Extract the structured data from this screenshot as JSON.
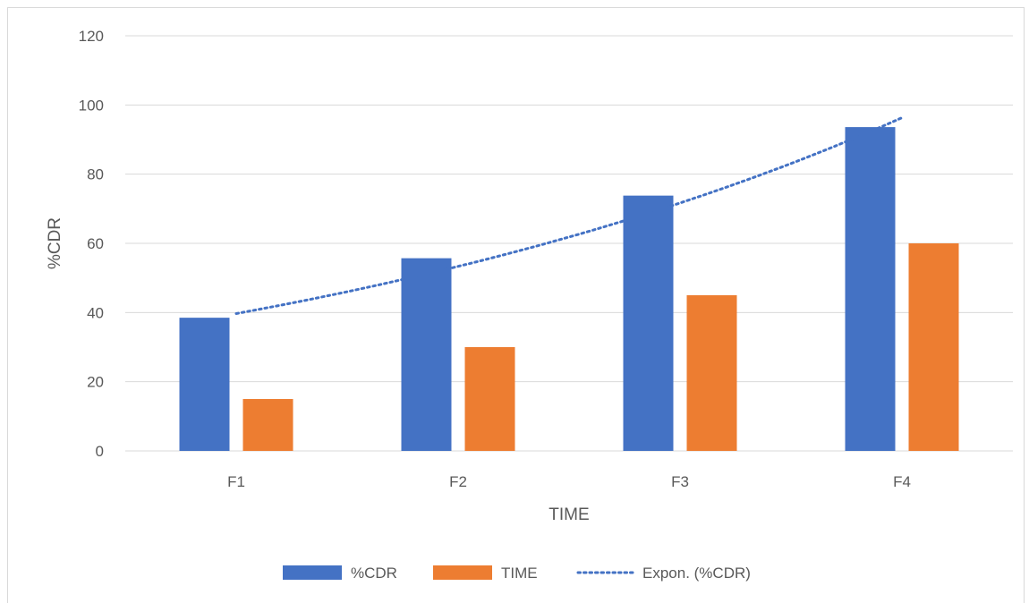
{
  "chart_data": {
    "type": "bar",
    "title": "",
    "xlabel": "TIME",
    "ylabel": "%CDR",
    "categories": [
      "F1",
      "F2",
      "F3",
      "F4"
    ],
    "ylim": [
      0,
      120
    ],
    "yticks": [
      "0",
      "20",
      "40",
      "60",
      "80",
      "100",
      "120"
    ],
    "grid": true,
    "legend_position": "bottom",
    "series": [
      {
        "name": "%CDR",
        "values": [
          38.5,
          55.7,
          73.8,
          93.6
        ],
        "color": "#4472C4"
      },
      {
        "name": "TIME",
        "values": [
          15,
          30,
          45,
          60
        ],
        "color": "#ED7D31"
      }
    ],
    "trendline": {
      "name": "Expon. (%CDR)",
      "type": "exponential",
      "of_series": "%CDR",
      "values": [
        39.7,
        52.3,
        69.2,
        96.3
      ],
      "color": "#4472C4",
      "style": "dotted"
    }
  }
}
